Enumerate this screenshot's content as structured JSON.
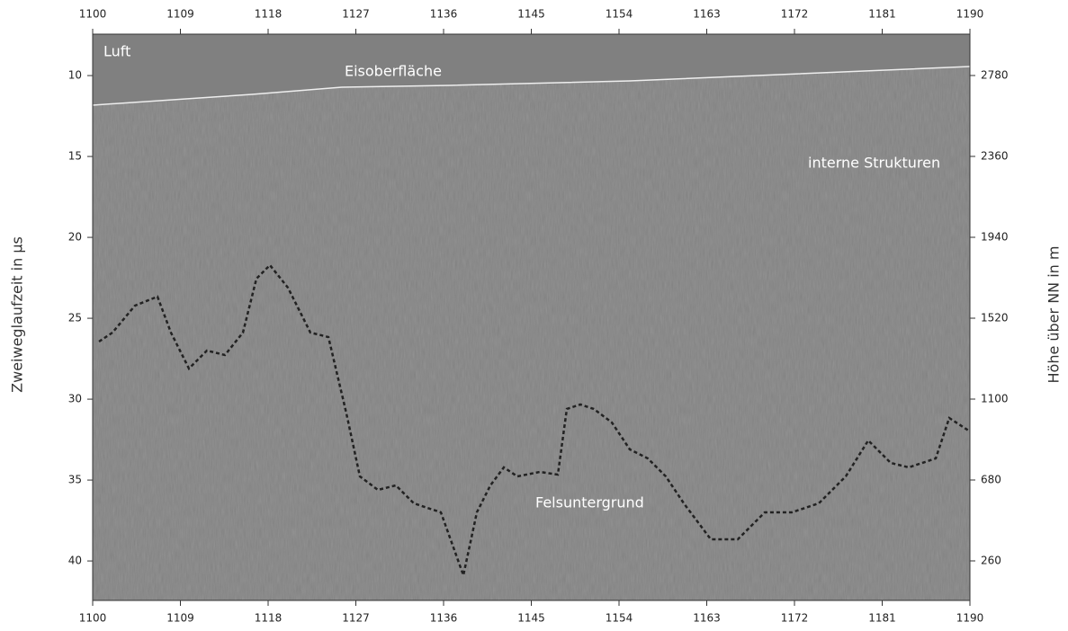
{
  "chart_data": {
    "type": "radargram",
    "xlim": [
      1100,
      1190
    ],
    "xticks": [
      1100,
      1109,
      1118,
      1127,
      1136,
      1145,
      1154,
      1163,
      1172,
      1181,
      1190
    ],
    "ylim": [
      7.44,
      42.44
    ],
    "y_inverted": true,
    "yticks": [
      10,
      15,
      20,
      25,
      30,
      35,
      40
    ],
    "y2lim": [
      54.7,
      2994.7
    ],
    "y2ticks": [
      2780,
      2360,
      1940,
      1520,
      1100,
      680,
      260
    ],
    "ylabel": "Zweiweglaufzeit in µs",
    "y2label": "Höhe über NN in m",
    "annotations": [
      "Luft",
      "Eisoberfläche",
      "interne Strukturen",
      "Felsuntergrund"
    ]
  }
}
